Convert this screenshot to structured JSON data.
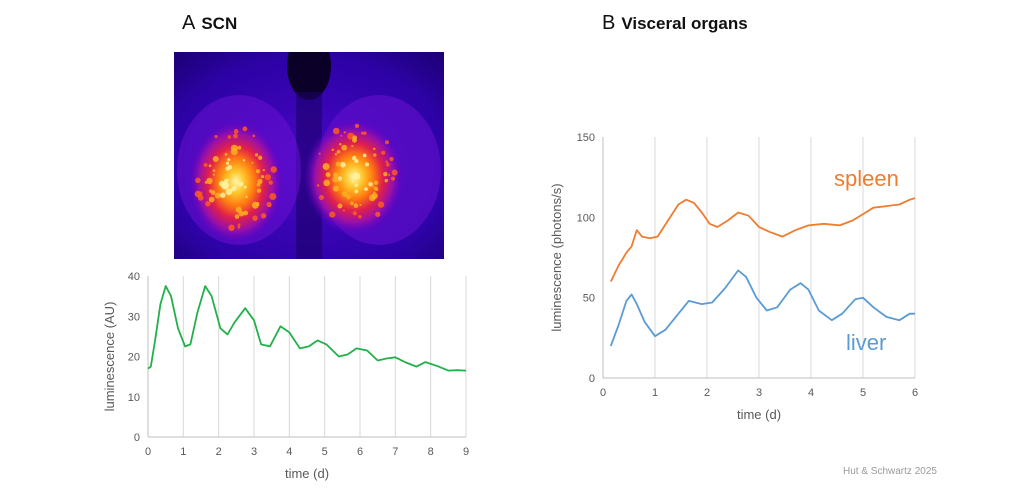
{
  "panels": {
    "A": {
      "letter": "A",
      "label": "SCN"
    },
    "B": {
      "letter": "B",
      "label": "Visceral organs"
    }
  },
  "credit": "Hut & Schwartz 2025",
  "colors": {
    "green": "#22b04a",
    "orange": "#ed7d31",
    "blue": "#5b9bd5",
    "axis": "#bfbfbf",
    "grid": "#d9d9d9"
  },
  "chart_data": [
    {
      "id": "scn",
      "type": "line",
      "xlabel": "time (d)",
      "ylabel": "luminescence (AU)",
      "xlim": [
        0,
        9
      ],
      "ylim": [
        0,
        40
      ],
      "xticks": [
        0,
        1,
        2,
        3,
        4,
        5,
        6,
        7,
        8,
        9
      ],
      "yticks": [
        0,
        10,
        20,
        30,
        40
      ],
      "grid": "vertical",
      "series": [
        {
          "color": "#22b04a",
          "x": [
            0,
            0.08,
            0.2,
            0.35,
            0.5,
            0.65,
            0.85,
            1.05,
            1.2,
            1.4,
            1.62,
            1.8,
            2.05,
            2.25,
            2.45,
            2.75,
            3.0,
            3.2,
            3.45,
            3.75,
            4.0,
            4.3,
            4.55,
            4.8,
            5.05,
            5.4,
            5.65,
            5.9,
            6.2,
            6.5,
            6.75,
            7.0,
            7.3,
            7.6,
            7.85,
            8.2,
            8.5,
            8.75,
            9.0
          ],
          "y": [
            17,
            17.5,
            24,
            33,
            37.5,
            35,
            27,
            22.5,
            23,
            31,
            37.5,
            35,
            27,
            25.5,
            28.5,
            32,
            29,
            23,
            22.5,
            27.5,
            26,
            22,
            22.5,
            24,
            23,
            20,
            20.5,
            22,
            21.5,
            19,
            19.5,
            19.8,
            18.5,
            17.5,
            18.6,
            17.6,
            16.5,
            16.6,
            16.5
          ]
        }
      ]
    },
    {
      "id": "visceral",
      "type": "line",
      "xlabel": "time (d)",
      "ylabel": "luminescence  (photons/s)",
      "xlim": [
        0,
        6
      ],
      "ylim": [
        0,
        150
      ],
      "xticks": [
        0,
        1,
        2,
        3,
        4,
        5,
        6
      ],
      "yticks": [
        0,
        50,
        100,
        150
      ],
      "grid": "vertical",
      "series": [
        {
          "name": "spleen",
          "color": "#ed7d31",
          "x": [
            0.15,
            0.3,
            0.45,
            0.55,
            0.65,
            0.75,
            0.9,
            1.05,
            1.25,
            1.45,
            1.6,
            1.75,
            1.9,
            2.05,
            2.2,
            2.4,
            2.6,
            2.8,
            3.0,
            3.2,
            3.45,
            3.7,
            3.95,
            4.25,
            4.55,
            4.8,
            5.0,
            5.2,
            5.45,
            5.7,
            5.9,
            6.0
          ],
          "y": [
            60,
            70,
            78,
            82,
            92,
            88,
            87,
            88,
            98,
            108,
            111,
            109,
            103,
            96,
            94,
            98,
            103,
            101,
            94,
            91,
            88,
            92,
            95,
            96,
            95,
            98,
            102,
            106,
            107,
            108,
            111,
            112
          ]
        },
        {
          "name": "liver",
          "color": "#5b9bd5",
          "x": [
            0.15,
            0.3,
            0.45,
            0.55,
            0.65,
            0.8,
            1.0,
            1.2,
            1.45,
            1.65,
            1.9,
            2.1,
            2.35,
            2.6,
            2.75,
            2.95,
            3.15,
            3.35,
            3.6,
            3.8,
            3.95,
            4.15,
            4.4,
            4.6,
            4.85,
            5.0,
            5.2,
            5.45,
            5.7,
            5.9,
            6.0
          ],
          "y": [
            20,
            33,
            48,
            52,
            46,
            35,
            26,
            30,
            40,
            48,
            46,
            47,
            56,
            67,
            63,
            50,
            42,
            44,
            55,
            59,
            55,
            42,
            36,
            40,
            49,
            50,
            44,
            38,
            36,
            40,
            40
          ]
        }
      ]
    }
  ]
}
